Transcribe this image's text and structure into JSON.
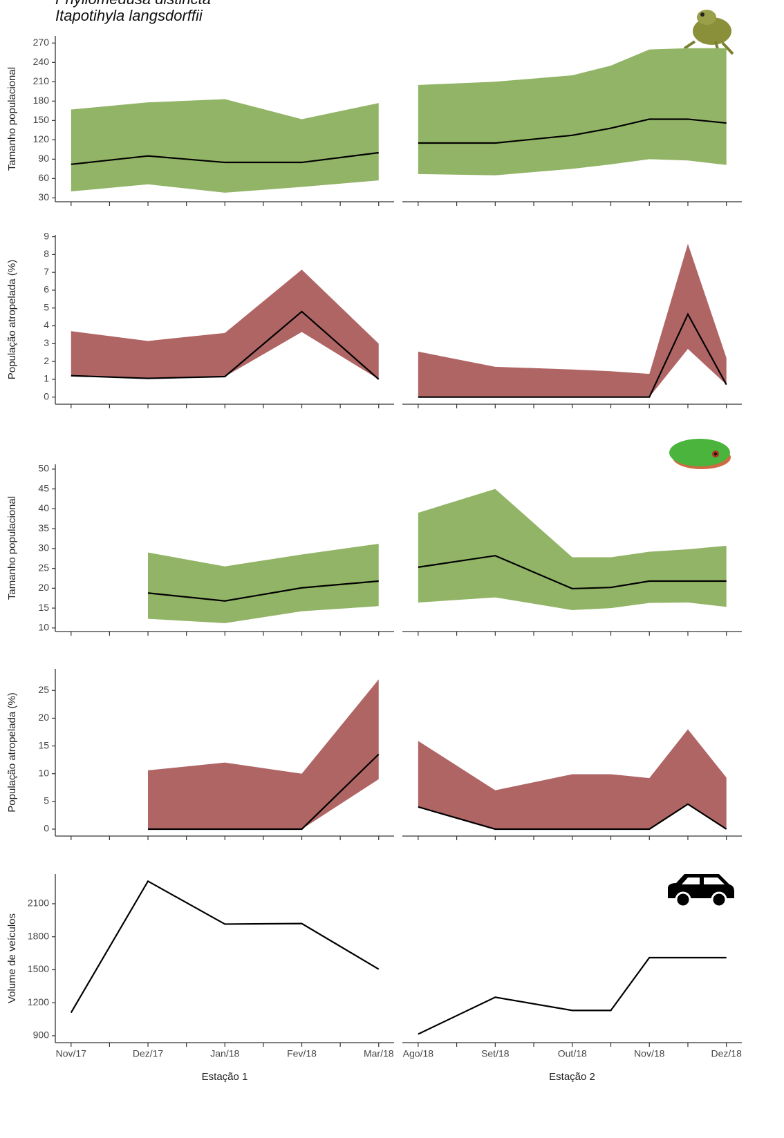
{
  "chart_data": [
    {
      "type": "band",
      "title": "Itapotihyla langsdorffii",
      "ylabel": "Tamanho populacional",
      "x": [
        0,
        2,
        4,
        6,
        8
      ],
      "values": [
        82,
        95,
        85,
        85,
        100
      ],
      "upper": [
        167,
        178,
        183,
        152,
        177
      ],
      "lower": [
        40,
        51,
        38,
        47,
        57
      ],
      "xlim": [
        -0.41,
        8.4
      ],
      "ylim": [
        24,
        281
      ],
      "yticks": [
        30,
        60,
        90,
        120,
        150,
        180,
        210,
        240,
        270
      ],
      "xticks": [
        0,
        2,
        4,
        6,
        8
      ],
      "xminorticks": [
        1,
        3,
        5,
        7
      ],
      "fill_color": "#92b466",
      "line_color": "#000000"
    },
    {
      "type": "band",
      "x": [
        0,
        2,
        4,
        5,
        6,
        7,
        8
      ],
      "values": [
        115,
        115,
        127,
        138,
        152,
        152,
        146
      ],
      "upper": [
        205,
        210,
        220,
        235,
        260,
        262,
        262
      ],
      "lower": [
        67,
        65,
        75,
        82,
        90,
        88,
        81
      ],
      "xlim": [
        -0.41,
        8.4
      ],
      "ylim": [
        24,
        281
      ],
      "xticks": [
        0,
        2,
        4,
        6,
        8
      ],
      "xminorticks": [
        1,
        3,
        5,
        7
      ],
      "fill_color": "#92b466",
      "line_color": "#000000"
    },
    {
      "type": "band",
      "ylabel": "População atropelada (%)",
      "x": [
        0,
        2,
        4,
        6,
        8
      ],
      "values": [
        1.2,
        1.05,
        1.15,
        4.8,
        1.0
      ],
      "upper": [
        3.7,
        3.15,
        3.6,
        7.15,
        3.0
      ],
      "lower": [
        1.2,
        1.05,
        1.15,
        3.65,
        1.0
      ],
      "xlim": [
        -0.41,
        8.4
      ],
      "ylim": [
        -0.4,
        9.1
      ],
      "yticks": [
        0,
        1,
        2,
        3,
        4,
        5,
        6,
        7,
        8,
        9
      ],
      "xticks": [
        0,
        2,
        4,
        6,
        8
      ],
      "xminorticks": [
        1,
        3,
        5,
        7
      ],
      "fill_color": "#b06565",
      "line_color": "#000000"
    },
    {
      "type": "band",
      "x": [
        0,
        2,
        4,
        5,
        6,
        7,
        8
      ],
      "values": [
        0,
        0,
        0,
        0,
        0,
        4.65,
        0.7
      ],
      "upper": [
        2.55,
        1.7,
        1.55,
        1.45,
        1.3,
        8.6,
        2.2
      ],
      "lower": [
        0,
        0,
        0,
        0,
        0,
        2.7,
        0.7
      ],
      "xlim": [
        -0.41,
        8.4
      ],
      "ylim": [
        -0.4,
        9.1
      ],
      "xticks": [
        0,
        2,
        4,
        6,
        8
      ],
      "xminorticks": [
        1,
        3,
        5,
        7
      ],
      "fill_color": "#b06565",
      "line_color": "#000000"
    },
    {
      "type": "band",
      "title": "Phyllomedusa distincta",
      "ylabel": "Tamanho populacional",
      "x": [
        2,
        4,
        6,
        8
      ],
      "values": [
        18.8,
        16.8,
        20.1,
        21.8
      ],
      "upper": [
        29,
        25.5,
        28.5,
        31.2
      ],
      "lower": [
        12.3,
        11.2,
        14.2,
        15.5
      ],
      "xlim": [
        -0.41,
        8.4
      ],
      "ylim": [
        9.1,
        51.2
      ],
      "yticks": [
        10,
        15,
        20,
        25,
        30,
        35,
        40,
        45,
        50
      ],
      "xticks": [
        0,
        2,
        4,
        6,
        8
      ],
      "xminorticks": [
        1,
        3,
        5,
        7
      ],
      "fill_color": "#92b466",
      "line_color": "#000000"
    },
    {
      "type": "band",
      "x": [
        0,
        2,
        4,
        5,
        6,
        7,
        8
      ],
      "values": [
        25.3,
        28.2,
        19.9,
        20.2,
        21.8,
        21.8,
        21.8
      ],
      "upper": [
        39,
        45,
        27.8,
        27.8,
        29.2,
        29.8,
        30.7
      ],
      "lower": [
        16.4,
        17.7,
        14.5,
        15,
        16.3,
        16.4,
        15.3
      ],
      "xlim": [
        -0.41,
        8.4
      ],
      "ylim": [
        9.1,
        51.2
      ],
      "xticks": [
        0,
        2,
        4,
        6,
        8
      ],
      "xminorticks": [
        1,
        3,
        5,
        7
      ],
      "fill_color": "#92b466",
      "line_color": "#000000"
    },
    {
      "type": "band",
      "ylabel": "População atropelada (%)",
      "x": [
        2,
        4,
        6,
        8
      ],
      "values": [
        0,
        0,
        0,
        13.5
      ],
      "upper": [
        10.6,
        12,
        10,
        27
      ],
      "lower": [
        0,
        0,
        0,
        9
      ],
      "xlim": [
        -0.41,
        8.4
      ],
      "ylim": [
        -1.25,
        28.9
      ],
      "yticks": [
        0,
        5,
        10,
        15,
        20,
        25
      ],
      "xticks": [
        0,
        2,
        4,
        6,
        8
      ],
      "xminorticks": [
        1,
        3,
        5,
        7
      ],
      "fill_color": "#b06565",
      "line_color": "#000000"
    },
    {
      "type": "band",
      "x": [
        0,
        2,
        4,
        5,
        6,
        7,
        8
      ],
      "values": [
        4,
        0,
        0,
        0,
        0,
        4.5,
        0
      ],
      "upper": [
        15.9,
        7,
        9.9,
        9.9,
        9.2,
        18,
        9.3
      ],
      "lower": [
        4,
        0,
        0,
        0,
        0,
        4.5,
        0
      ],
      "xlim": [
        -0.41,
        8.4
      ],
      "ylim": [
        -1.25,
        28.9
      ],
      "xticks": [
        0,
        2,
        4,
        6,
        8
      ],
      "xminorticks": [
        1,
        3,
        5,
        7
      ],
      "fill_color": "#b06565",
      "line_color": "#000000"
    },
    {
      "type": "line",
      "ylabel": "Volume de veículos",
      "xlabel": "Estação 1",
      "x": [
        0,
        2,
        4,
        6,
        8
      ],
      "values": [
        1110,
        2305,
        1915,
        1920,
        1505
      ],
      "xlim": [
        -0.41,
        8.4
      ],
      "ylim": [
        837,
        2370
      ],
      "yticks": [
        900,
        1200,
        1500,
        1800,
        2100
      ],
      "xticks": [
        {
          "value": 0,
          "label": "Nov/17"
        },
        {
          "value": 2,
          "label": "Dez/17"
        },
        {
          "value": 4,
          "label": "Jan/18"
        },
        {
          "value": 6,
          "label": "Fev/18"
        },
        {
          "value": 8,
          "label": "Mar/18"
        }
      ],
      "xminorticks": [
        1,
        3,
        5,
        7
      ],
      "line_color": "#000000"
    },
    {
      "type": "line",
      "xlabel": "Estação 2",
      "x": [
        0,
        2,
        4,
        5,
        6,
        8
      ],
      "values": [
        915,
        1250,
        1130,
        1130,
        1610,
        1610
      ],
      "xlim": [
        -0.41,
        8.4
      ],
      "ylim": [
        837,
        2370
      ],
      "xticks": [
        {
          "value": 0,
          "label": "Ago/18"
        },
        {
          "value": 2,
          "label": "Set/18"
        },
        {
          "value": 4,
          "label": "Out/18"
        },
        {
          "value": 6,
          "label": "Nov/18"
        },
        {
          "value": 8,
          "label": "Dez/18"
        }
      ],
      "xminorticks": [
        1,
        3,
        5,
        7
      ],
      "line_color": "#000000"
    }
  ]
}
